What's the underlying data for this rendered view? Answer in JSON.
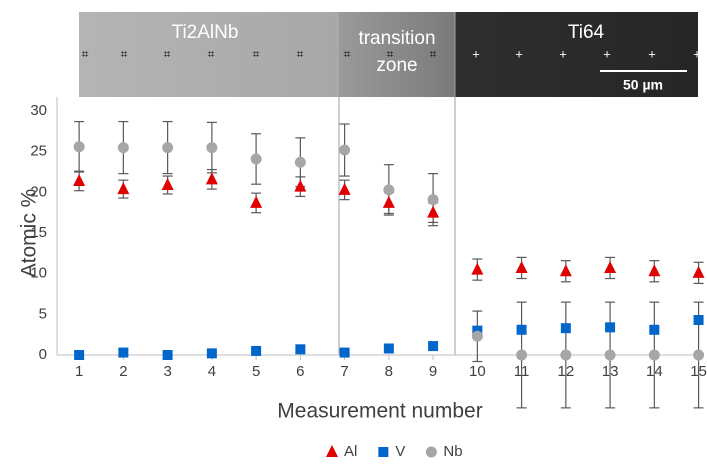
{
  "chart_data": {
    "type": "scatter",
    "image_labels": {
      "regions": [
        "Ti2AlNb",
        [
          "transition",
          "zone"
        ],
        "Ti64"
      ],
      "scale_bar": "50 µm"
    },
    "xlabel": "Measurement number",
    "ylabel": "Atomic %",
    "x": [
      1,
      2,
      3,
      4,
      5,
      6,
      7,
      8,
      9,
      10,
      11,
      12,
      13,
      14,
      15
    ],
    "xlim": [
      0.5,
      15.1
    ],
    "xticks": [
      1,
      2,
      3,
      4,
      5,
      6,
      7,
      8,
      9,
      10,
      11,
      12,
      13,
      14,
      15
    ],
    "ylim": [
      0,
      30
    ],
    "yticks": [
      0,
      5,
      10,
      15,
      20,
      25,
      30
    ],
    "grid": false,
    "legend": "bottom",
    "series": [
      {
        "name": "Al",
        "color": "#e00000",
        "marker": "triangle",
        "values": [
          21.4,
          20.4,
          20.9,
          21.6,
          18.7,
          20.7,
          20.3,
          18.7,
          17.5,
          10.5,
          10.7,
          10.3,
          10.7,
          10.3,
          10.1
        ],
        "errors": [
          1.2,
          1.1,
          1.1,
          1.2,
          1.2,
          1.2,
          1.2,
          1.3,
          1.2,
          1.3,
          1.3,
          1.3,
          1.3,
          1.3,
          1.3
        ]
      },
      {
        "name": "V",
        "color": "#0066cc",
        "marker": "square",
        "values": [
          0,
          0.3,
          0,
          0.2,
          0.5,
          0.7,
          0.3,
          0.8,
          1.1,
          3.0,
          3.1,
          3.3,
          3.4,
          3.1,
          4.3
        ]
      },
      {
        "name": "Nb",
        "color": "#a6a6a6",
        "marker": "circle",
        "values": [
          25.6,
          25.5,
          25.5,
          25.5,
          24.1,
          23.7,
          25.2,
          20.3,
          19.1,
          2.3,
          0,
          0,
          0,
          0,
          0
        ],
        "errors": [
          3.1,
          3.2,
          3.2,
          3.1,
          3.1,
          3.0,
          3.2,
          3.1,
          3.2,
          3.1,
          6.5,
          6.5,
          6.5,
          6.5,
          6.5
        ]
      }
    ]
  }
}
